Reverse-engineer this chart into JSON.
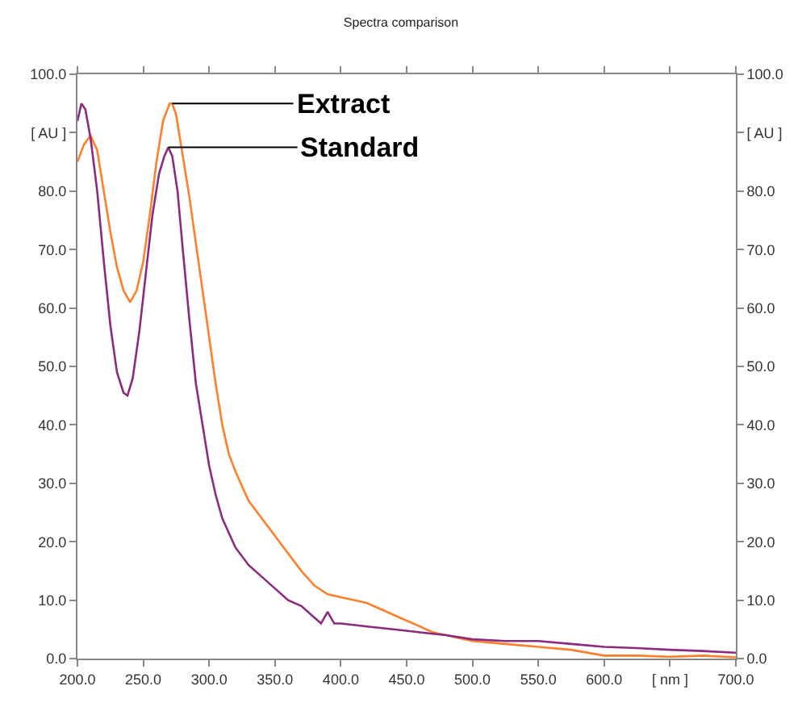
{
  "chart_data": {
    "type": "line",
    "title": "Spectra comparison",
    "xlim": [
      200,
      700
    ],
    "xticks": [
      {
        "value": 200,
        "label": "200.0"
      },
      {
        "value": 250,
        "label": "250.0"
      },
      {
        "value": 300,
        "label": "300.0"
      },
      {
        "value": 350,
        "label": "350.0"
      },
      {
        "value": 400,
        "label": "400.0"
      },
      {
        "value": 450,
        "label": "450.0"
      },
      {
        "value": 500,
        "label": "500.0"
      },
      {
        "value": 550,
        "label": "550.0"
      },
      {
        "value": 600,
        "label": "600.0"
      },
      {
        "value": 650,
        "label": "[ nm ]"
      },
      {
        "value": 700,
        "label": "700.0"
      }
    ],
    "ylim": [
      0,
      100
    ],
    "yticks": [
      {
        "value": 0,
        "label": "0.0"
      },
      {
        "value": 10,
        "label": "10.0"
      },
      {
        "value": 20,
        "label": "20.0"
      },
      {
        "value": 30,
        "label": "30.0"
      },
      {
        "value": 40,
        "label": "40.0"
      },
      {
        "value": 50,
        "label": "50.0"
      },
      {
        "value": 60,
        "label": "60.0"
      },
      {
        "value": 70,
        "label": "70.0"
      },
      {
        "value": 80,
        "label": "80.0"
      },
      {
        "value": 90,
        "label": "[ AU ]"
      },
      {
        "value": 100,
        "label": "100.0"
      }
    ],
    "y2lim": [
      0,
      100
    ],
    "y2ticks": [
      {
        "value": 0,
        "label": "0.0"
      },
      {
        "value": 10,
        "label": "10.0"
      },
      {
        "value": 20,
        "label": "20.0"
      },
      {
        "value": 30,
        "label": "30.0"
      },
      {
        "value": 40,
        "label": "40.0"
      },
      {
        "value": 50,
        "label": "50.0"
      },
      {
        "value": 60,
        "label": "60.0"
      },
      {
        "value": 70,
        "label": "70.0"
      },
      {
        "value": 80,
        "label": "80.0"
      },
      {
        "value": 90,
        "label": "[ AU ]"
      },
      {
        "value": 100,
        "label": "100.0"
      }
    ],
    "marker": "none",
    "line_style": "solid",
    "series": [
      {
        "color": "#ff7f2a",
        "x": [
          200,
          205,
          210,
          215,
          220,
          225,
          230,
          235,
          240,
          245,
          250,
          255,
          260,
          265,
          270,
          272,
          275,
          280,
          285,
          290,
          295,
          300,
          305,
          310,
          315,
          320,
          330,
          340,
          350,
          360,
          370,
          380,
          390,
          400,
          410,
          420,
          430,
          440,
          450,
          460,
          470,
          480,
          490,
          500,
          525,
          550,
          575,
          600,
          625,
          650,
          675,
          700
        ],
        "values": [
          85,
          88,
          89.5,
          87,
          80,
          73,
          67,
          63,
          61,
          63,
          68,
          76,
          85,
          92,
          95,
          95,
          93,
          86,
          79,
          71,
          63,
          55,
          47,
          40,
          35,
          32,
          27,
          24,
          21,
          18,
          15,
          12.5,
          11,
          10.5,
          10,
          9.5,
          8.5,
          7.5,
          6.5,
          5.5,
          4.5,
          4,
          3.5,
          3,
          2.5,
          2,
          1.5,
          0.5,
          0.5,
          0.3,
          0.5,
          0.2
        ]
      },
      {
        "color": "#8b2a7e",
        "x": [
          200,
          203,
          206,
          210,
          215,
          220,
          225,
          230,
          235,
          238,
          242,
          247,
          252,
          257,
          262,
          266,
          269,
          272,
          276,
          280,
          285,
          290,
          295,
          300,
          305,
          310,
          320,
          330,
          340,
          350,
          360,
          370,
          380,
          385,
          390,
          395,
          400,
          420,
          440,
          460,
          480,
          500,
          525,
          550,
          575,
          600,
          625,
          650,
          675,
          700
        ],
        "values": [
          92,
          95,
          94,
          89,
          80,
          68,
          57,
          49,
          45.5,
          45,
          48,
          56,
          66,
          76,
          83,
          86,
          87.5,
          86,
          80,
          70,
          58,
          47,
          40,
          33,
          28,
          24,
          19,
          16,
          14,
          12,
          10,
          9,
          7,
          6,
          8,
          6,
          6,
          5.5,
          5,
          4.5,
          4,
          3.3,
          3,
          3,
          2.5,
          2,
          1.8,
          1.5,
          1.3,
          1
        ]
      }
    ],
    "annotations": [
      {
        "text": "Extract",
        "x": 272,
        "y": 95
      },
      {
        "text": "Standard",
        "x": 269,
        "y": 87.5
      }
    ]
  }
}
